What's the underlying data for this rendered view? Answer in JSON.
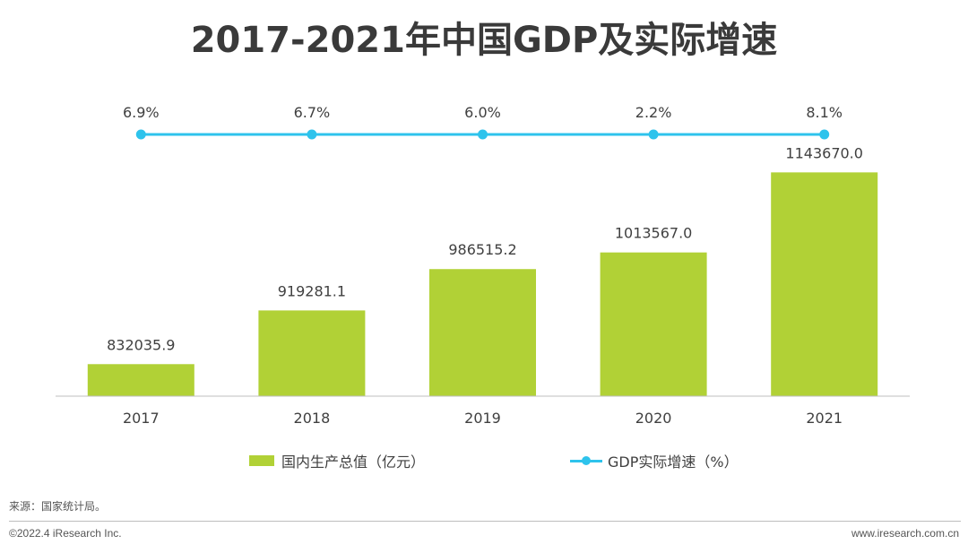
{
  "title": "2017-2021年中国GDP及实际增速",
  "chart_data": {
    "type": "bar",
    "categories": [
      "2017",
      "2018",
      "2019",
      "2020",
      "2021"
    ],
    "series": [
      {
        "name": "国内生产总值（亿元）",
        "type": "bar",
        "values": [
          832035.9,
          919281.1,
          986515.2,
          1013567.0,
          1143670.0
        ],
        "labels": [
          "832035.9",
          "919281.1",
          "986515.2",
          "1013567.0",
          "1143670.0"
        ]
      },
      {
        "name": "GDP实际增速（%）",
        "type": "line",
        "values": [
          6.9,
          6.7,
          6.0,
          2.2,
          8.1
        ],
        "labels": [
          "6.9%",
          "6.7%",
          "6.0%",
          "2.2%",
          "8.1%"
        ]
      }
    ],
    "ylim": [
      780000,
      1150000
    ],
    "xlabel": "",
    "ylabel": "",
    "legend": "bottom-center"
  },
  "colors": {
    "bar": "#b1d136",
    "line": "#2ec3ec",
    "axis": "#bfbfbf",
    "text": "#404040"
  },
  "legend": {
    "bar_label": "国内生产总值（亿元）",
    "line_label": "GDP实际增速（%）"
  },
  "footer": {
    "source": "来源：国家统计局。",
    "copyright": "©2022.4 iResearch Inc.",
    "website": "www.iresearch.com.cn"
  }
}
